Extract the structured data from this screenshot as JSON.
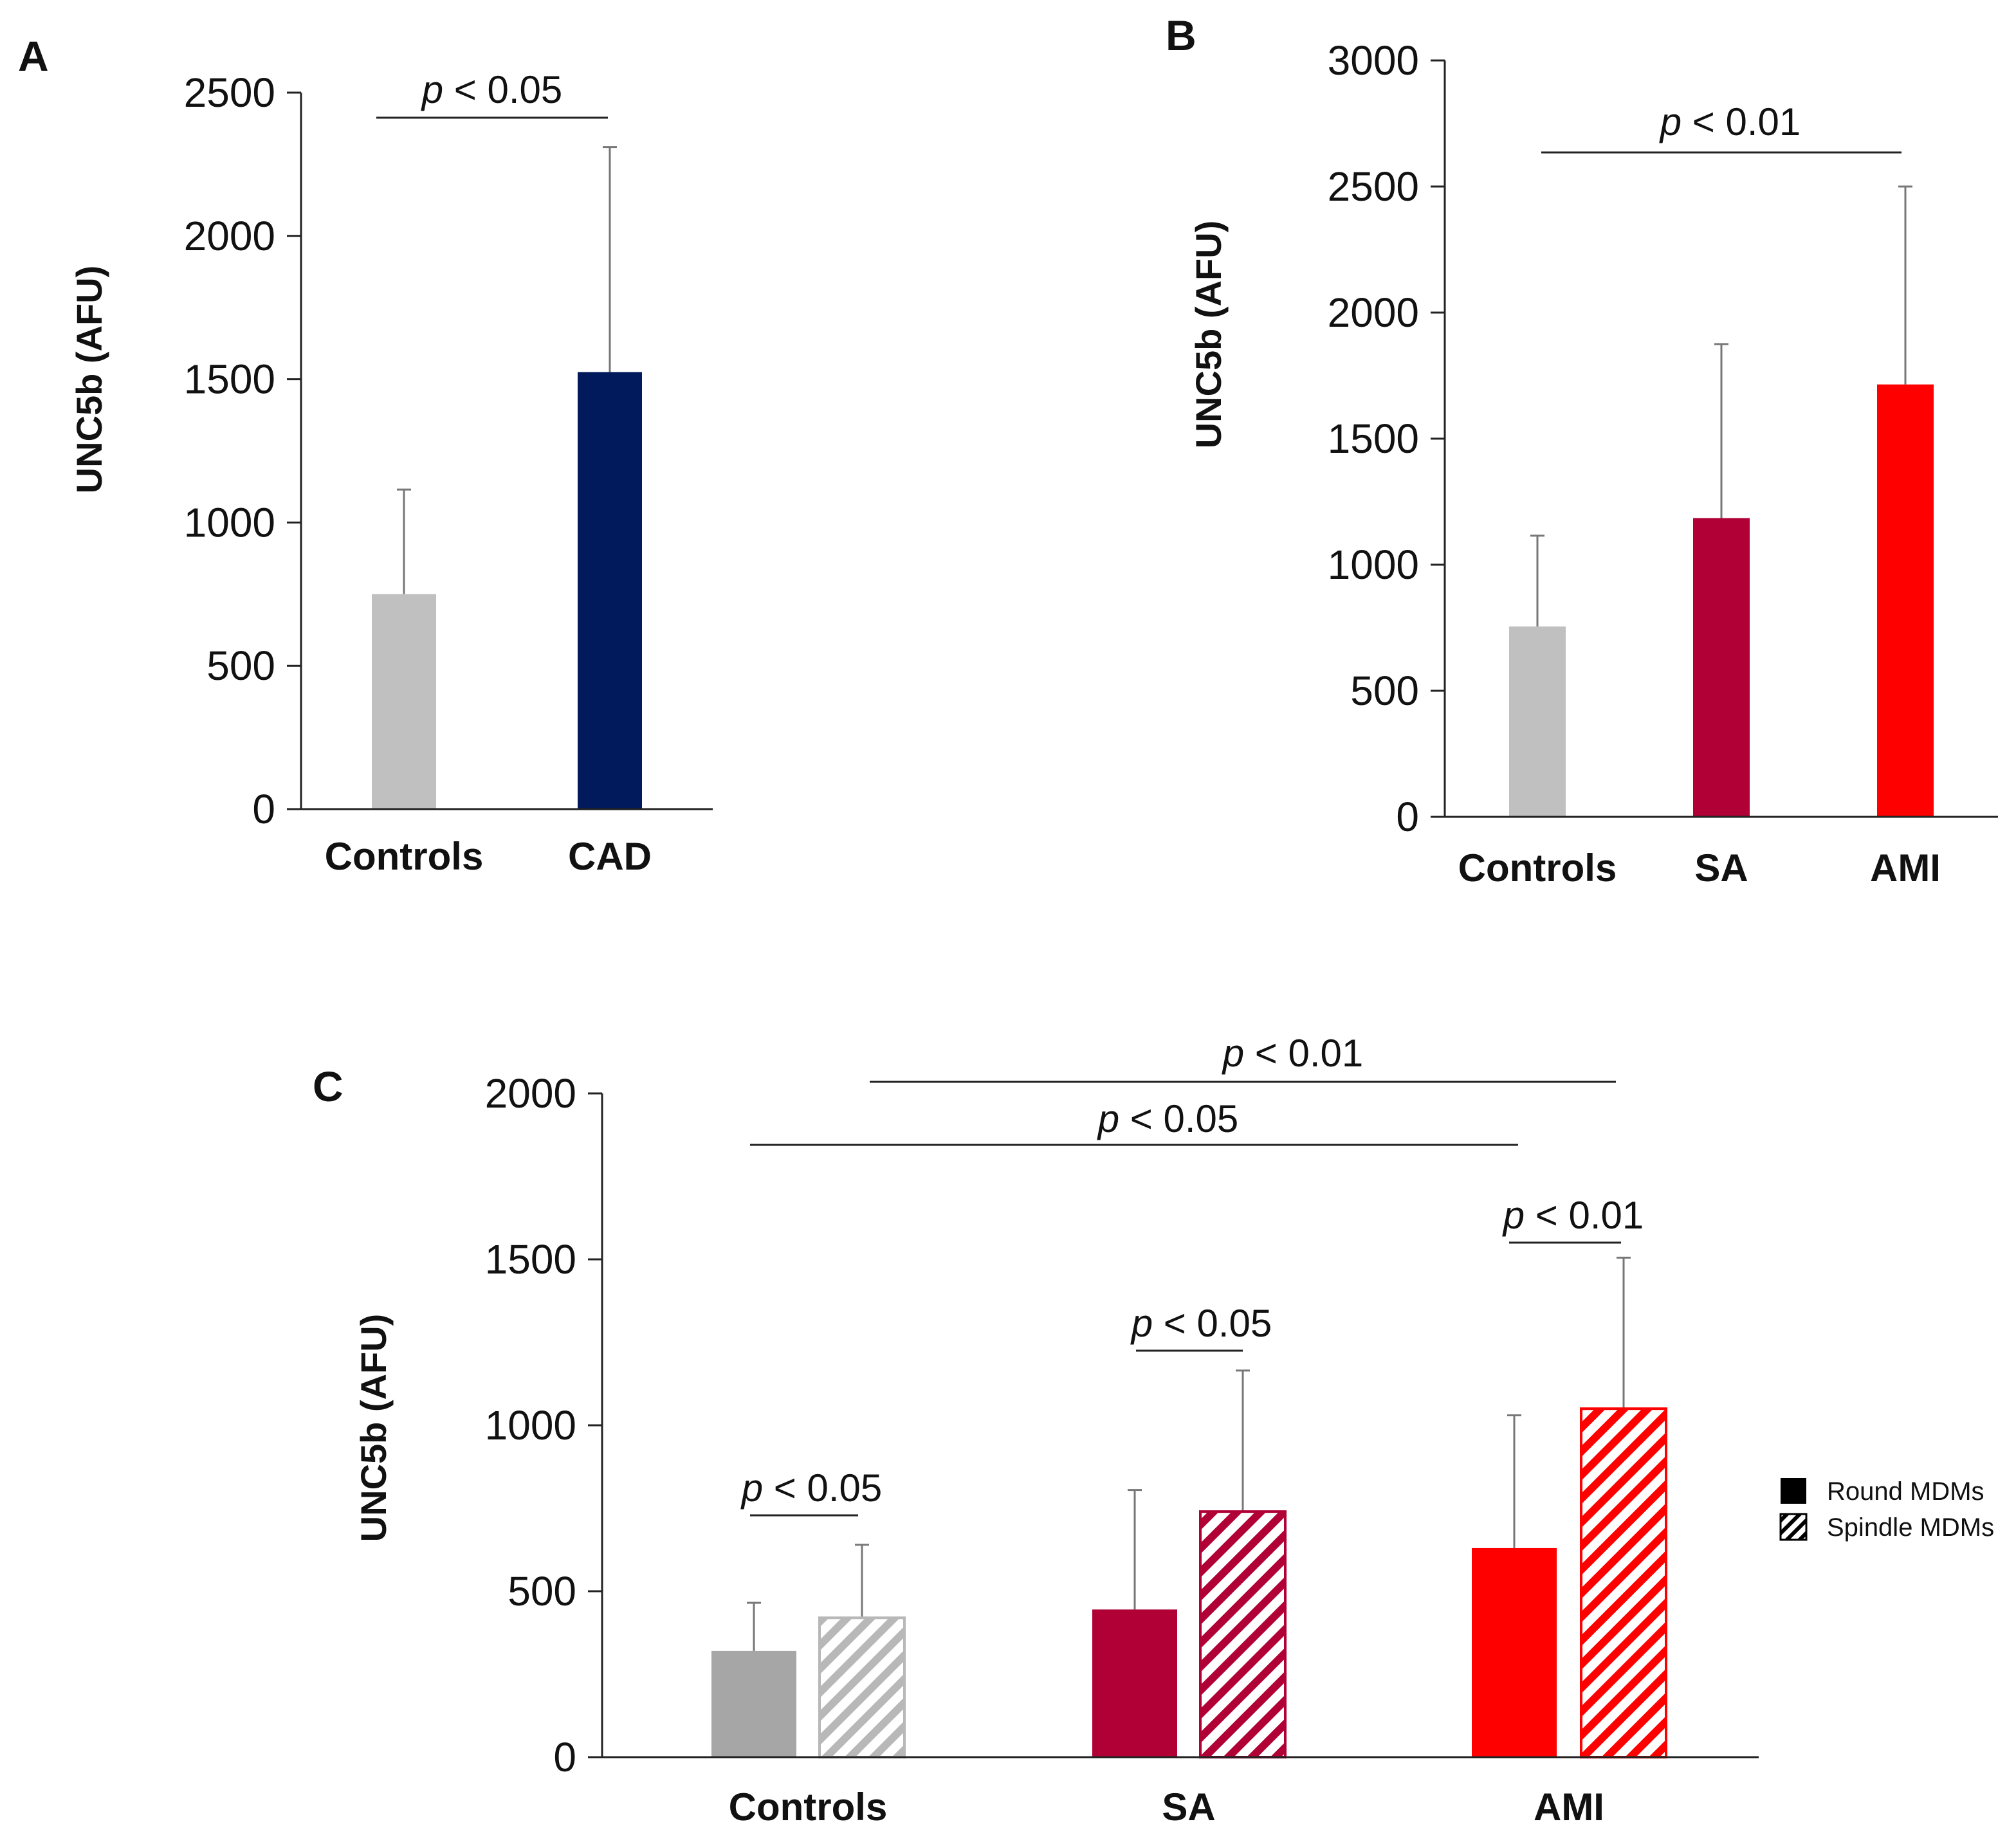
{
  "chart_data": [
    {
      "panel": "A",
      "type": "bar",
      "ylabel": "UNC5b (AFU)",
      "ylim": [
        0,
        2500
      ],
      "yticks": [
        "0",
        "500",
        "1000",
        "1500",
        "2000",
        "2500"
      ],
      "categories": [
        "Controls",
        "CAD"
      ],
      "values": [
        750,
        1525
      ],
      "errors": [
        365,
        785
      ],
      "colors": [
        "#c0c0c0",
        "#001a5c"
      ],
      "significance": [
        {
          "text": "p < 0.05",
          "p": "p",
          "rest": " < 0.05",
          "from": 0,
          "to": 1
        }
      ]
    },
    {
      "panel": "B",
      "type": "bar",
      "ylabel": "UNC5b (AFU)",
      "ylim": [
        0,
        3000
      ],
      "yticks": [
        "0",
        "500",
        "1000",
        "1500",
        "2000",
        "2500",
        "3000"
      ],
      "categories": [
        "Controls",
        "SA",
        "AMI"
      ],
      "values": [
        755,
        1185,
        1715
      ],
      "errors": [
        360,
        690,
        785
      ],
      "colors": [
        "#c0c0c0",
        "#b00035",
        "#ff0000"
      ],
      "significance": [
        {
          "text": "p < 0.01",
          "p": "p",
          "rest": " < 0.01",
          "from": 0,
          "to": 2
        }
      ]
    },
    {
      "panel": "C",
      "type": "bar",
      "ylabel": "UNC5b (AFU)",
      "ylim": [
        0,
        2000
      ],
      "yticks": [
        "0",
        "500",
        "1000",
        "1500",
        "2000"
      ],
      "categories": [
        "Controls",
        "SA",
        "AMI"
      ],
      "category_colors": [
        "#a6a6a6",
        "#b00035",
        "#ff0000"
      ],
      "series": [
        {
          "name": "Round MDMs",
          "values": [
            320,
            445,
            630
          ],
          "errors": [
            145,
            360,
            400
          ],
          "pattern": "solid"
        },
        {
          "name": "Spindle MDMs",
          "values": [
            420,
            740,
            1050
          ],
          "errors": [
            220,
            425,
            455
          ],
          "pattern": "hatched"
        }
      ],
      "significance": [
        {
          "text": "p < 0.01",
          "p": "p",
          "rest": " < 0.01"
        },
        {
          "text": "p < 0.05",
          "p": "p",
          "rest": " < 0.05"
        },
        {
          "text": "p < 0.01",
          "p": "p",
          "rest": " < 0.01"
        },
        {
          "text": "p < 0.05",
          "p": "p",
          "rest": " < 0.05"
        },
        {
          "text": "p < 0.05",
          "p": "p",
          "rest": " < 0.05"
        }
      ],
      "legend": [
        {
          "label": "Round MDMs",
          "swatch": "solid",
          "color": "#000000"
        },
        {
          "label": "Spindle MDMs",
          "swatch": "hatched",
          "color": "#000000"
        }
      ]
    }
  ]
}
